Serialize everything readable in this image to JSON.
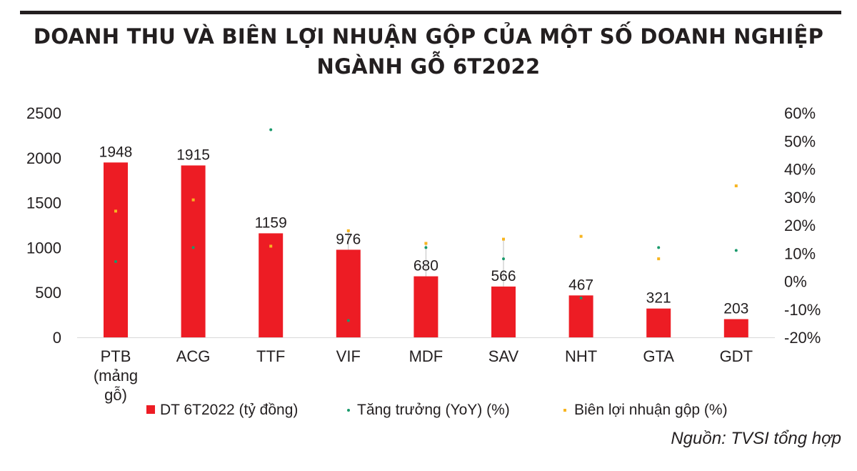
{
  "chart_data": {
    "type": "bar",
    "title_lines": [
      "DOANH THU VÀ BIÊN LỢI NHUẬN GỘP CỦA MỘT SỐ DOANH NGHIỆP",
      "NGÀNH GỖ 6T2022"
    ],
    "categories": [
      [
        "PTB",
        "(mảng",
        "gỗ)"
      ],
      [
        "ACG"
      ],
      [
        "TTF"
      ],
      [
        "VIF"
      ],
      [
        "MDF"
      ],
      [
        "SAV"
      ],
      [
        "NHT"
      ],
      [
        "GTA"
      ],
      [
        "GDT"
      ]
    ],
    "series": [
      {
        "name": "DT 6T2022 (tỷ đồng)",
        "type": "bar",
        "axis": "left",
        "color": "#ed1c24",
        "values": [
          1948,
          1915,
          1159,
          976,
          680,
          566,
          467,
          321,
          203
        ]
      },
      {
        "name": "Tăng trưởng (YoY) (%)",
        "type": "scatter",
        "axis": "right",
        "color": "#1a9a6c",
        "values": [
          7,
          12,
          54,
          -14,
          12,
          8,
          -6,
          12,
          11
        ]
      },
      {
        "name": "Biên lợi nhuận gộp (%)",
        "type": "scatter",
        "axis": "right",
        "color": "#f7b521",
        "values": [
          25,
          29,
          12.5,
          18,
          13.5,
          15,
          16,
          8,
          34
        ]
      }
    ],
    "y_left": {
      "range": [
        0,
        2500
      ],
      "ticks": [
        "0",
        "500",
        "1000",
        "1500",
        "2000",
        "2500"
      ]
    },
    "y_right": {
      "range": [
        -20,
        60
      ],
      "ticks": [
        "-20%",
        "-10%",
        "0%",
        "10%",
        "20%",
        "30%",
        "40%",
        "50%",
        "60%"
      ]
    },
    "legend_position": "bottom",
    "grid": false
  },
  "source": "Nguồn: TVSI tổng hợp"
}
